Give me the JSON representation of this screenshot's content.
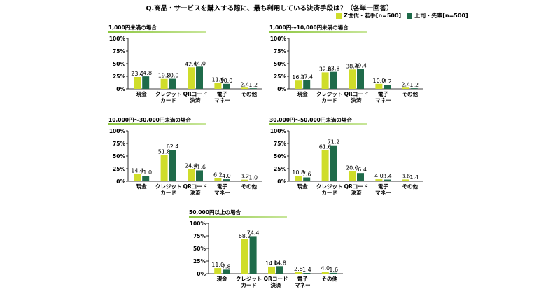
{
  "title": "Q.商品・サービスを購入する際に、最も利用している決済手段は？（各単一回答）",
  "legend": [
    {
      "label": "Z世代・若手[n=500]",
      "color": "#cfdd2a"
    },
    {
      "label": "上司・先輩[n=500]",
      "color": "#1f6b4a"
    }
  ],
  "colors": {
    "gen_z": "#cfdd2a",
    "senior": "#1f6b4a",
    "axis": "#000000",
    "header_line": "#8cc63f"
  },
  "chart_data": [
    {
      "type": "bar",
      "title": "1,000円未満の場合",
      "categories": [
        "現金",
        "クレジット\nカード",
        "QRコード\n決済",
        "電子\nマネー",
        "その他"
      ],
      "series": [
        {
          "name": "Z世代・若手[n=500]",
          "values": [
            23.6,
            19.8,
            42.6,
            11.6,
            2.4
          ]
        },
        {
          "name": "上司・先輩[n=500]",
          "values": [
            24.8,
            20.0,
            44.0,
            10.0,
            1.2
          ]
        }
      ],
      "yticks": [
        "0%",
        "25%",
        "50%",
        "75%",
        "100%"
      ],
      "ylim": [
        0,
        100
      ]
    },
    {
      "type": "bar",
      "title": "1,000円～10,000円未満の場合",
      "categories": [
        "現金",
        "クレジット\nカード",
        "QRコード\n決済",
        "電子\nマネー",
        "その他"
      ],
      "series": [
        {
          "name": "Z世代・若手[n=500]",
          "values": [
            16.4,
            32.8,
            38.4,
            10.0,
            2.4
          ]
        },
        {
          "name": "上司・先輩[n=500]",
          "values": [
            17.4,
            33.8,
            39.4,
            8.2,
            1.2
          ]
        }
      ],
      "yticks": [
        "0%",
        "25%",
        "50%",
        "75%",
        "100%"
      ],
      "ylim": [
        0,
        100
      ]
    },
    {
      "type": "bar",
      "title": "10,000円～30,000円未満の場合",
      "categories": [
        "現金",
        "クレジット\nカード",
        "QRコード\n決済",
        "電子\nマネー",
        "その他"
      ],
      "series": [
        {
          "name": "Z世代・若手[n=500]",
          "values": [
            14.4,
            51.8,
            24.4,
            6.2,
            3.2
          ]
        },
        {
          "name": "上司・先輩[n=500]",
          "values": [
            11.0,
            62.4,
            21.6,
            4.0,
            1.0
          ]
        }
      ],
      "yticks": [
        "0%",
        "25%",
        "50%",
        "75%",
        "100%"
      ],
      "ylim": [
        0,
        100
      ]
    },
    {
      "type": "bar",
      "title": "30,000円～50,000円未満の場合",
      "categories": [
        "現金",
        "クレジット\nカード",
        "QRコード\n決済",
        "電子\nマネー",
        "その他"
      ],
      "series": [
        {
          "name": "Z世代・若手[n=500]",
          "values": [
            10.8,
            61.6,
            20.0,
            4.0,
            3.6
          ]
        },
        {
          "name": "上司・先輩[n=500]",
          "values": [
            7.6,
            71.2,
            16.4,
            3.4,
            1.4
          ]
        }
      ],
      "yticks": [
        "0%",
        "25%",
        "50%",
        "75%",
        "100%"
      ],
      "ylim": [
        0,
        100
      ]
    },
    {
      "type": "bar",
      "title": "50,000円以上の場合",
      "categories": [
        "現金",
        "クレジット\nカード",
        "QRコード\n決済",
        "電子\nマネー",
        "その他"
      ],
      "series": [
        {
          "name": "Z世代・若手[n=500]",
          "values": [
            11.0,
            68.2,
            14.0,
            2.8,
            4.0
          ]
        },
        {
          "name": "上司・先輩[n=500]",
          "values": [
            7.8,
            74.4,
            14.8,
            1.4,
            1.6
          ]
        }
      ],
      "yticks": [
        "0%",
        "25%",
        "50%",
        "75%",
        "100%"
      ],
      "ylim": [
        0,
        100
      ]
    }
  ]
}
